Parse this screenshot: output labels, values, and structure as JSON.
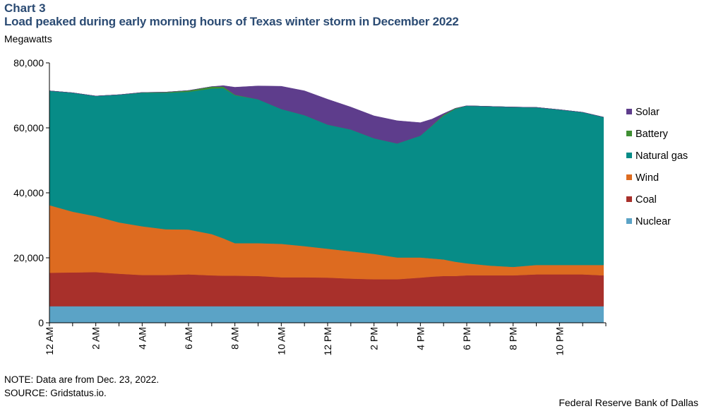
{
  "header": {
    "chart_number": "Chart 3",
    "title": "Load peaked during early morning hours of Texas winter storm in December 2022",
    "unit": "Megawatts"
  },
  "footer": {
    "note": "NOTE: Data are from Dec. 23, 2022.",
    "source": "SOURCE: Gridstatus.io.",
    "credit": "Federal Reserve Bank of Dallas"
  },
  "chart_data": {
    "type": "area",
    "stacked": true,
    "ylim": [
      0,
      80000
    ],
    "yticks": [
      0,
      20000,
      40000,
      60000,
      80000
    ],
    "ytick_labels": [
      "0",
      "20,000",
      "40,000",
      "60,000",
      "80,000"
    ],
    "xlim": [
      0,
      24
    ],
    "xticks": [
      0,
      2,
      4,
      6,
      8,
      10,
      12,
      14,
      16,
      18,
      20,
      22
    ],
    "xtick_labels": [
      "12 AM",
      "2 AM",
      "4 AM",
      "6 AM",
      "8 AM",
      "10 AM",
      "12 PM",
      "2 PM",
      "4 PM",
      "6 PM",
      "8 PM",
      "10 PM"
    ],
    "legend_position": "right",
    "x": [
      0,
      1,
      2,
      3,
      4,
      5,
      6,
      7,
      7.5,
      8,
      9,
      10,
      11,
      12,
      13,
      14,
      15,
      16,
      16.5,
      17,
      17.5,
      18,
      19,
      20,
      21,
      22,
      23,
      23.9
    ],
    "series": [
      {
        "name": "Nuclear",
        "color": "#5ba3c6",
        "values": [
          5100,
          5100,
          5100,
          5100,
          5100,
          5100,
          5100,
          5100,
          5100,
          5100,
          5100,
          5100,
          5100,
          5100,
          5100,
          5100,
          5100,
          5100,
          5100,
          5100,
          5100,
          5100,
          5100,
          5100,
          5100,
          5100,
          5100,
          5100
        ]
      },
      {
        "name": "Coal",
        "color": "#a8302b",
        "values": [
          10300,
          10400,
          10500,
          10000,
          9600,
          9600,
          9800,
          9500,
          9400,
          9400,
          9300,
          8900,
          8900,
          8800,
          8500,
          8300,
          8300,
          8800,
          9100,
          9300,
          9300,
          9500,
          9500,
          9500,
          9800,
          9800,
          9800,
          9500
        ]
      },
      {
        "name": "Wind",
        "color": "#dd6b20",
        "values": [
          20800,
          18700,
          17200,
          15800,
          15000,
          14100,
          13800,
          12700,
          11500,
          10000,
          10100,
          10300,
          9600,
          8900,
          8400,
          7800,
          6700,
          6200,
          5600,
          5100,
          4400,
          3700,
          3000,
          2600,
          2900,
          2900,
          2900,
          3200
        ]
      },
      {
        "name": "Natural gas",
        "color": "#078c87",
        "values": [
          35200,
          36600,
          37000,
          39300,
          41100,
          42000,
          42400,
          44800,
          46200,
          45500,
          44300,
          41500,
          40300,
          38200,
          37500,
          35600,
          35100,
          37500,
          40800,
          44200,
          47000,
          48500,
          49000,
          49200,
          48500,
          47800,
          47000,
          45500
        ]
      },
      {
        "name": "Battery",
        "color": "#3f8f33",
        "values": [
          0,
          0,
          0,
          0,
          100,
          200,
          400,
          600,
          500,
          200,
          0,
          0,
          0,
          0,
          0,
          0,
          0,
          0,
          100,
          300,
          200,
          0,
          0,
          0,
          0,
          0,
          0,
          0
        ]
      },
      {
        "name": "Solar",
        "color": "#5e3d8c",
        "values": [
          0,
          0,
          0,
          0,
          0,
          0,
          0,
          0,
          300,
          2300,
          4100,
          7000,
          7500,
          7800,
          6900,
          6900,
          7000,
          4000,
          2000,
          400,
          0,
          0,
          0,
          0,
          0,
          0,
          0,
          0
        ]
      }
    ]
  }
}
